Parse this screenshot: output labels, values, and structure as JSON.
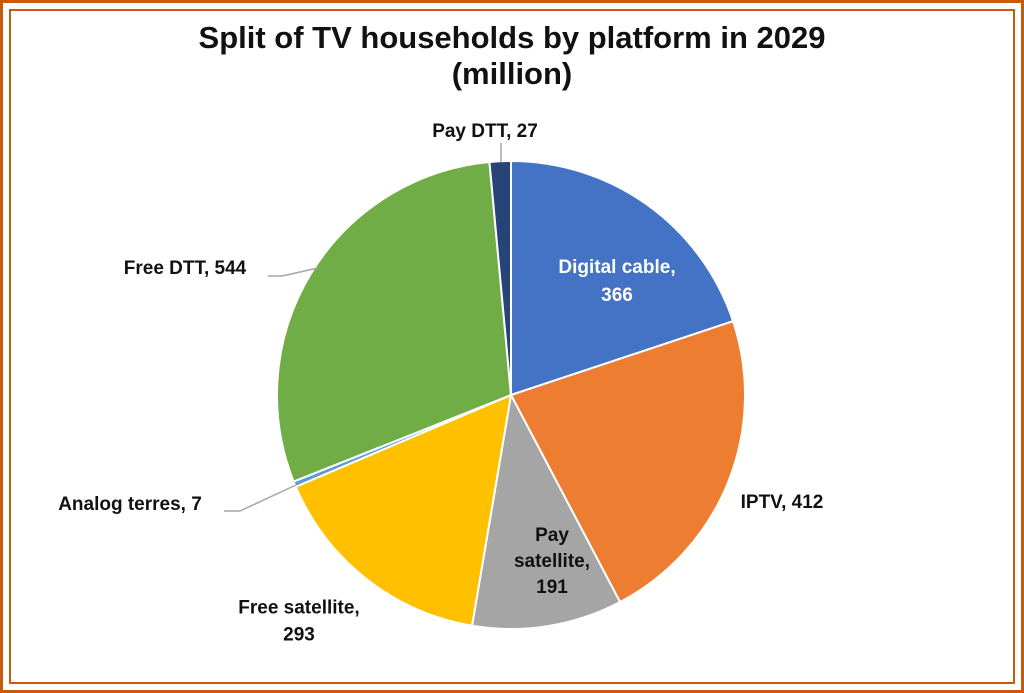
{
  "title_line1": "Split of TV households by platform in 2029",
  "title_line2": "(million)",
  "chart_data": {
    "type": "pie",
    "title": "Split of TV households by platform in 2029 (million)",
    "slices": [
      {
        "name": "Digital cable",
        "value": 366,
        "color": "#4472c4",
        "label_lines": [
          "Digital cable,",
          "366"
        ]
      },
      {
        "name": "IPTV",
        "value": 412,
        "color": "#ed7d31",
        "label_lines": [
          "IPTV, 412"
        ]
      },
      {
        "name": "Pay satellite",
        "value": 191,
        "color": "#a5a5a5",
        "label_lines": [
          "Pay",
          "satellite,",
          "191"
        ]
      },
      {
        "name": "Free satellite",
        "value": 293,
        "color": "#ffc000",
        "label_lines": [
          "Free satellite,",
          "293"
        ]
      },
      {
        "name": "Analog terres",
        "value": 7,
        "color": "#5b9bd5",
        "label_lines": [
          "Analog terres, 7"
        ]
      },
      {
        "name": "Free DTT",
        "value": 544,
        "color": "#70ad47",
        "label_lines": [
          "Free DTT, 544"
        ]
      },
      {
        "name": "Pay DTT",
        "value": 27,
        "color": "#264478",
        "label_lines": [
          "Pay DTT, 27"
        ]
      }
    ],
    "legend": "none",
    "data_labels": "category name and value"
  }
}
